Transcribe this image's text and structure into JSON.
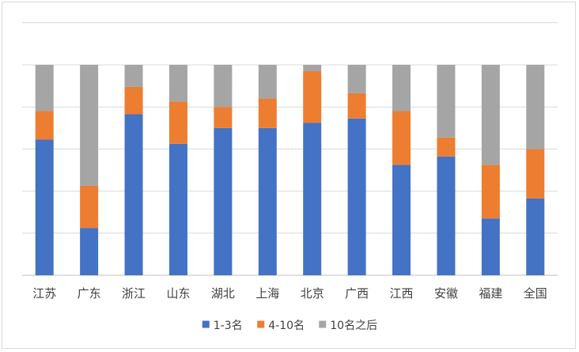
{
  "chart_data": {
    "type": "bar",
    "stacked": true,
    "percent_stacked": true,
    "categories": [
      "江苏",
      "广东",
      "浙江",
      "山东",
      "湖北",
      "上海",
      "北京",
      "广西",
      "江西",
      "安徽",
      "福建",
      "全国"
    ],
    "series": [
      {
        "name": "1-3名",
        "color": "#4472C4",
        "values": [
          0.645,
          0.225,
          0.765,
          0.625,
          0.7,
          0.7,
          0.725,
          0.745,
          0.525,
          0.565,
          0.27,
          0.365
        ]
      },
      {
        "name": "4-10名",
        "color": "#ED7D31",
        "values": [
          0.135,
          0.2,
          0.13,
          0.2,
          0.1,
          0.14,
          0.245,
          0.12,
          0.255,
          0.09,
          0.255,
          0.235
        ]
      },
      {
        "name": "10名之后",
        "color": "#A5A5A5",
        "values": [
          0.22,
          0.575,
          0.105,
          0.175,
          0.2,
          0.16,
          0.03,
          0.135,
          0.22,
          0.345,
          0.475,
          0.4
        ]
      }
    ],
    "ylim": [
      0,
      1
    ],
    "grid": true,
    "gridline_count": 6,
    "show_y_tick_labels": false,
    "legend_position": "bottom"
  }
}
